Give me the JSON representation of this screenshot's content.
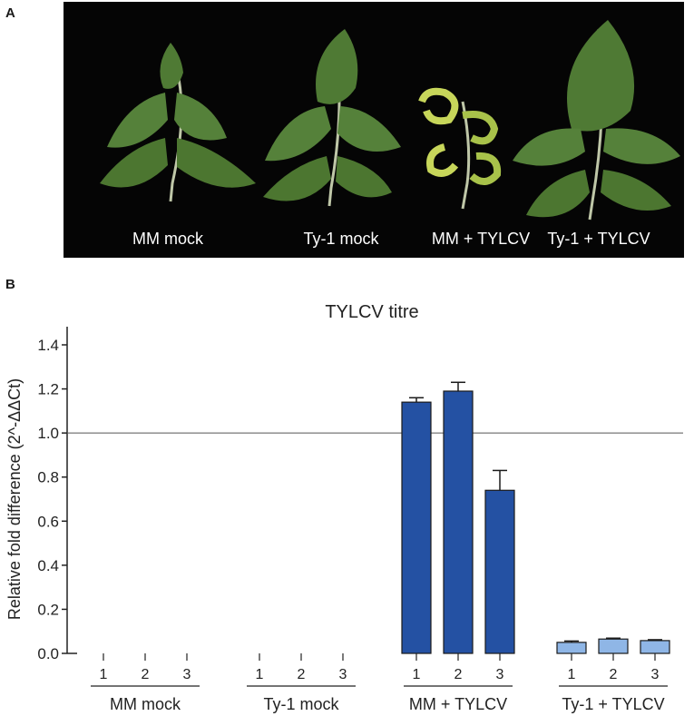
{
  "panel_a": {
    "letter": "A",
    "labels": [
      "MM mock",
      "Ty-1 mock",
      "MM + TYLCV",
      "Ty-1 + TYLCV"
    ]
  },
  "panel_b": {
    "letter": "B"
  },
  "colors": {
    "dark_bar": "#2451a3",
    "light_bar": "#8fb6e6",
    "leaf": "#4f7a34",
    "leaf_yellow": "#c7d65a"
  },
  "chart_data": {
    "type": "bar",
    "title": "TYLCV titre",
    "ylabel": "Relative fold difference (2^-ΔΔCt)",
    "xlabel": "",
    "ylim": [
      0,
      1.4
    ],
    "yticks": [
      "0.0",
      "0.2",
      "0.4",
      "0.6",
      "0.8",
      "1.0",
      "1.2",
      "1.4"
    ],
    "reference_line": 1.0,
    "groups": [
      {
        "name": "MM mock",
        "replicates": [
          "1",
          "2",
          "3"
        ],
        "values": [
          0,
          0,
          0
        ],
        "errors": [
          0,
          0,
          0
        ],
        "color": "dark"
      },
      {
        "name": "Ty-1 mock",
        "replicates": [
          "1",
          "2",
          "3"
        ],
        "values": [
          0,
          0,
          0
        ],
        "errors": [
          0,
          0,
          0
        ],
        "color": "dark"
      },
      {
        "name": "MM + TYLCV",
        "replicates": [
          "1",
          "2",
          "3"
        ],
        "values": [
          1.14,
          1.19,
          0.74
        ],
        "errors": [
          0.02,
          0.04,
          0.09
        ],
        "color": "dark"
      },
      {
        "name": "Ty-1 + TYLCV",
        "replicates": [
          "1",
          "2",
          "3"
        ],
        "values": [
          0.05,
          0.065,
          0.058
        ],
        "errors": [
          0.006,
          0.004,
          0.004
        ],
        "color": "light"
      }
    ]
  }
}
